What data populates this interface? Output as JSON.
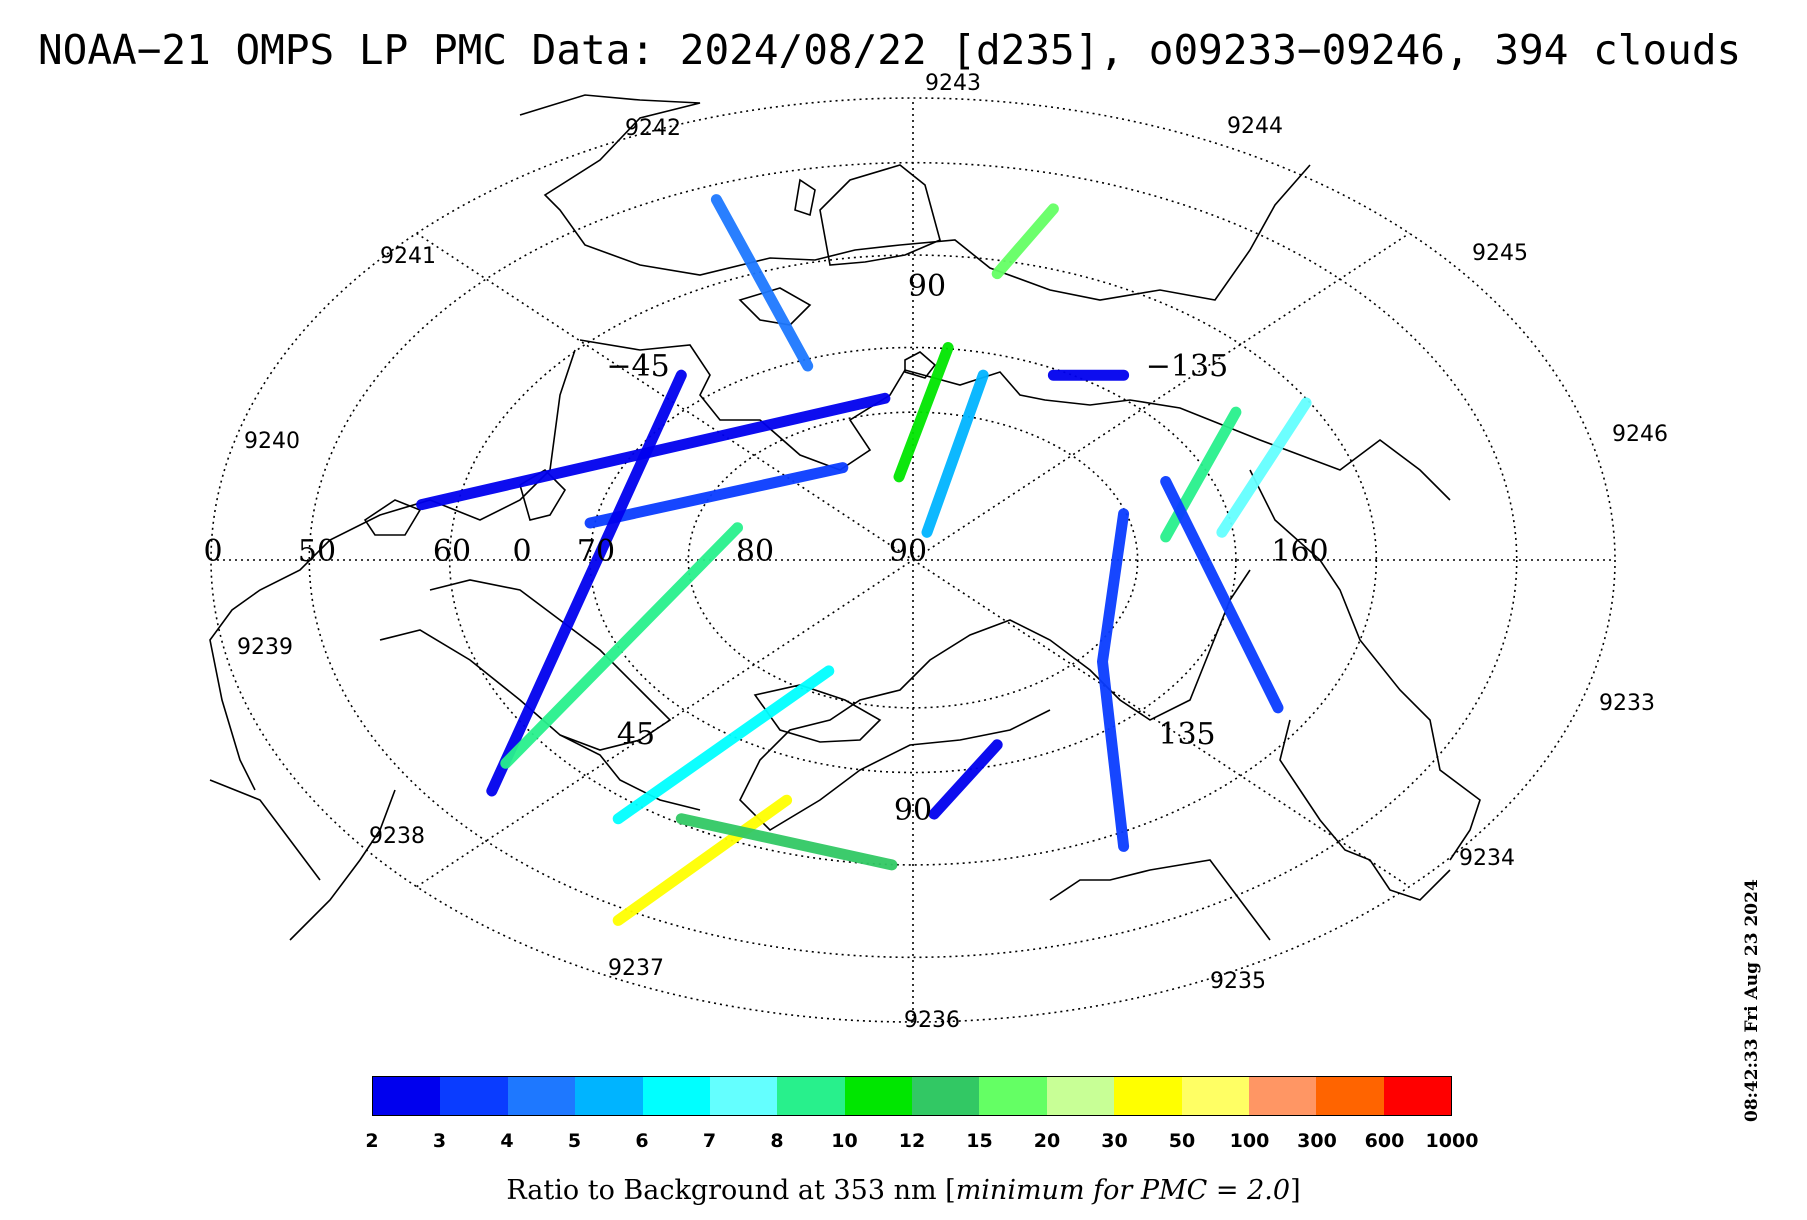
{
  "title": "NOAA−21 OMPS LP PMC Data: 2024/08/22 [d235], o09233−09246, 394 clouds",
  "timestamp": "08:42:33 Fri Aug 23 2024",
  "map": {
    "projection": "polar orthographic, north pole centered",
    "latitude_labels": [
      "0",
      "50",
      "60",
      "0",
      "70",
      "80",
      "90",
      "160"
    ],
    "longitude_labels": [
      "90",
      "−45",
      "−135",
      "45",
      "135",
      "90"
    ],
    "orbit_labels": [
      "9243",
      "9242",
      "9244",
      "9241",
      "9245",
      "9240",
      "9246",
      "9239",
      "9233",
      "9238",
      "9234",
      "9237",
      "9235",
      "9236"
    ]
  },
  "colorbar": {
    "colors": [
      "#0000ee",
      "#0a3cff",
      "#1e78ff",
      "#00b4ff",
      "#00ffff",
      "#64ffff",
      "#28f08c",
      "#00e600",
      "#32c864",
      "#64ff64",
      "#c8ff96",
      "#ffff00",
      "#ffff64",
      "#ff9664",
      "#ff6400",
      "#ff0000"
    ],
    "labels": [
      "2",
      "3",
      "4",
      "5",
      "6",
      "7",
      "8",
      "10",
      "12",
      "15",
      "20",
      "30",
      "50",
      "100",
      "300",
      "600",
      "1000"
    ],
    "caption_prefix": "Ratio to Background at 353 nm [",
    "caption_italic": "minimum for PMC = 2.0",
    "caption_suffix": "]"
  },
  "cloud_tracks": [
    {
      "level": 1,
      "points": [
        [
          0.3,
          -0.62
        ],
        [
          0.27,
          -0.22
        ],
        [
          0.3,
          0.1
        ]
      ]
    },
    {
      "level": 2,
      "points": [
        [
          -0.28,
          0.78
        ],
        [
          -0.15,
          0.42
        ]
      ]
    },
    {
      "level": 3,
      "points": [
        [
          0.1,
          0.4
        ],
        [
          0.02,
          0.06
        ]
      ]
    },
    {
      "level": 7,
      "points": [
        [
          0.05,
          0.46
        ],
        [
          -0.02,
          0.18
        ]
      ]
    },
    {
      "level": 5,
      "points": [
        [
          0.56,
          0.34
        ],
        [
          0.44,
          0.06
        ]
      ]
    },
    {
      "level": 6,
      "points": [
        [
          0.46,
          0.32
        ],
        [
          0.36,
          0.05
        ]
      ]
    },
    {
      "level": 1,
      "points": [
        [
          -0.46,
          0.08
        ],
        [
          -0.1,
          0.2
        ]
      ]
    },
    {
      "level": 0,
      "points": [
        [
          -0.33,
          0.4
        ],
        [
          -0.6,
          -0.5
        ]
      ]
    },
    {
      "level": 0,
      "points": [
        [
          -0.04,
          0.35
        ],
        [
          -0.7,
          0.12
        ]
      ]
    },
    {
      "level": 1,
      "points": [
        [
          0.52,
          -0.32
        ],
        [
          0.36,
          0.17
        ]
      ]
    },
    {
      "level": 6,
      "points": [
        [
          -0.58,
          -0.44
        ],
        [
          -0.25,
          0.07
        ]
      ]
    },
    {
      "level": 4,
      "points": [
        [
          -0.12,
          -0.24
        ],
        [
          -0.42,
          -0.56
        ]
      ]
    },
    {
      "level": 11,
      "points": [
        [
          -0.42,
          -0.78
        ],
        [
          -0.18,
          -0.52
        ]
      ]
    },
    {
      "level": 8,
      "points": [
        [
          -0.33,
          -0.56
        ],
        [
          -0.03,
          -0.66
        ]
      ]
    },
    {
      "level": 0,
      "points": [
        [
          0.03,
          -0.55
        ],
        [
          0.12,
          -0.4
        ]
      ]
    },
    {
      "level": 0,
      "points": [
        [
          0.2,
          0.4
        ],
        [
          0.3,
          0.4
        ]
      ]
    },
    {
      "level": 9,
      "points": [
        [
          0.2,
          0.76
        ],
        [
          0.12,
          0.62
        ]
      ]
    }
  ]
}
